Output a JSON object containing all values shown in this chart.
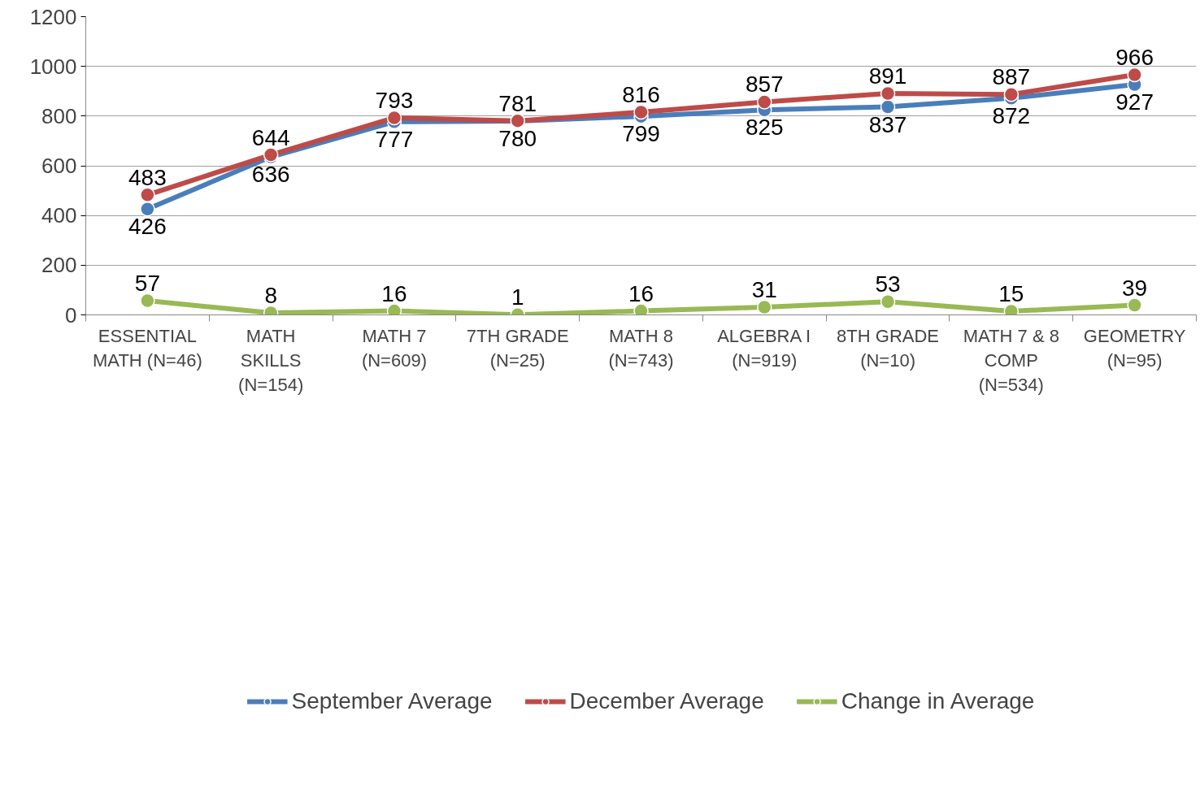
{
  "chart_data": {
    "type": "line",
    "categories": [
      "ESSENTIAL\nMATH (N=46)",
      "MATH\nSKILLS\n(N=154)",
      "MATH 7\n(N=609)",
      "7TH GRADE\n(N=25)",
      "MATH 8\n(N=743)",
      "ALGEBRA I\n(N=919)",
      "8TH GRADE\n(N=10)",
      "MATH 7 & 8\nCOMP\n(N=534)",
      "GEOMETRY\n(N=95)"
    ],
    "series": [
      {
        "name": "September Average",
        "color": "#4a7ebb",
        "values": [
          426,
          636,
          777,
          780,
          799,
          825,
          837,
          872,
          927
        ]
      },
      {
        "name": "December Average",
        "color": "#be4b48",
        "values": [
          483,
          644,
          793,
          781,
          816,
          857,
          891,
          887,
          966
        ]
      },
      {
        "name": "Change in Average",
        "color": "#98b954",
        "values": [
          57,
          8,
          16,
          1,
          16,
          31,
          53,
          15,
          39
        ]
      }
    ],
    "ylim": [
      0,
      1200
    ],
    "yticks": [
      0,
      200,
      400,
      600,
      800,
      1000,
      1200
    ],
    "grid": "y",
    "legend": "bottom",
    "marker": "circle",
    "line_style": "solid",
    "data_labels": true
  }
}
